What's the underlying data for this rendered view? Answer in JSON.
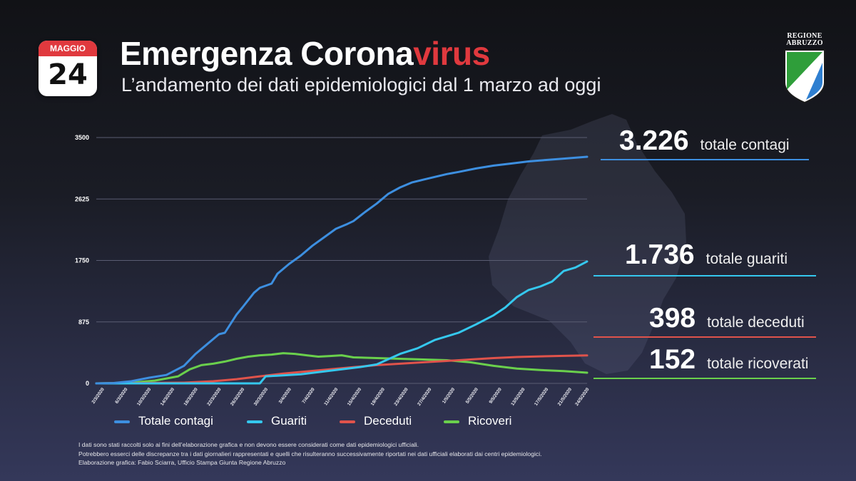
{
  "header": {
    "calendar_month": "MAGGIO",
    "calendar_day": "24",
    "title_main": "Emergenza Corona",
    "title_accent": "virus",
    "subtitle": "L’andamento dei dati epidemiologici dal 1 marzo ad oggi",
    "logo_line1": "REGIONE",
    "logo_line2": "ABRUZZO"
  },
  "colors": {
    "contagi": "#3d8fe0",
    "guariti": "#35c8ee",
    "deceduti": "#e0534b",
    "ricoveri": "#6ad04c",
    "accent": "#e0393e"
  },
  "stats": [
    {
      "value": "3.226",
      "label": "totale contagi"
    },
    {
      "value": "1.736",
      "label": "totale guariti"
    },
    {
      "value": "398",
      "label": "totale deceduti"
    },
    {
      "value": "152",
      "label": "totale ricoverati"
    }
  ],
  "footer": {
    "line1": "I dati sono stati raccolti solo ai fini dell’elaborazione grafica e non devono essere considerati come dati epidemiologici ufficiali.",
    "line2": "Potrebbero esserci delle discrepanze tra i dati giornalieri rappresentati e quelli che risulteranno successivamente riportati nei dati ufficiali elaborati dai centri epidemiologici.",
    "line3": "Elaborazione grafica: Fabio Sciarra, Ufficio Stampa Giunta Regione Abruzzo"
  },
  "chart_data": {
    "type": "line",
    "ylim": [
      0,
      3500
    ],
    "y_ticks": [
      "0",
      "875",
      "1750",
      "2625",
      "3500"
    ],
    "y_tick_values": [
      0,
      875,
      1750,
      2625,
      3500
    ],
    "grid": true,
    "legend_position": "bottom",
    "x_tick_labels": [
      "2/3/2020",
      "6/3/2020",
      "10/3/2020",
      "14/3/2020",
      "18/3/2020",
      "22/3/2020",
      "26/3/2020",
      "30/3/2020",
      "3/4/2020",
      "7/4/2020",
      "11/4/2020",
      "15/4/2020",
      "19/4/2020",
      "23/4/2020",
      "27/4/2020",
      "1/5/2020",
      "5/5/2020",
      "9/5/2020",
      "13/5/2020",
      "17/5/2020",
      "21/5/2020",
      "24/5/2020"
    ],
    "x_tick_days": [
      1,
      5,
      9,
      13,
      17,
      21,
      25,
      29,
      33,
      37,
      41,
      45,
      49,
      53,
      57,
      61,
      65,
      69,
      73,
      77,
      81,
      84
    ],
    "x_range": [
      0,
      84
    ],
    "series": [
      {
        "name": "Totale contagi",
        "key": "contagi",
        "x": [
          0,
          3,
          6,
          9,
          12,
          15,
          17,
          19,
          21,
          22,
          24,
          25,
          27,
          28,
          30,
          31,
          33,
          35,
          37,
          39,
          41,
          43,
          44,
          46,
          48,
          50,
          52,
          54,
          56,
          58,
          60,
          62,
          65,
          68,
          71,
          74,
          77,
          80,
          84
        ],
        "y": [
          0,
          5,
          30,
          80,
          120,
          250,
          420,
          560,
          700,
          720,
          980,
          1080,
          1290,
          1360,
          1420,
          1560,
          1700,
          1820,
          1960,
          2080,
          2200,
          2270,
          2310,
          2440,
          2560,
          2700,
          2790,
          2860,
          2900,
          2940,
          2980,
          3010,
          3060,
          3100,
          3130,
          3160,
          3180,
          3200,
          3226
        ]
      },
      {
        "name": "Guariti",
        "key": "guariti",
        "x": [
          0,
          28,
          29,
          31,
          35,
          40,
          45,
          48,
          52,
          55,
          58,
          62,
          65,
          68,
          70,
          72,
          74,
          76,
          78,
          80,
          82,
          84
        ],
        "y": [
          0,
          0,
          100,
          110,
          130,
          180,
          230,
          270,
          420,
          500,
          620,
          720,
          840,
          970,
          1080,
          1230,
          1330,
          1380,
          1450,
          1600,
          1650,
          1736
        ]
      },
      {
        "name": "Deceduti",
        "key": "deceduti",
        "x": [
          0,
          15,
          20,
          24,
          28,
          32,
          36,
          40,
          44,
          48,
          52,
          56,
          60,
          64,
          68,
          72,
          76,
          80,
          84
        ],
        "y": [
          0,
          10,
          30,
          60,
          100,
          140,
          170,
          200,
          230,
          260,
          280,
          300,
          320,
          340,
          360,
          375,
          385,
          392,
          398
        ]
      },
      {
        "name": "Ricoveri",
        "key": "ricoveri",
        "x": [
          0,
          6,
          10,
          14,
          16,
          18,
          20,
          22,
          24,
          26,
          28,
          30,
          32,
          34,
          36,
          38,
          40,
          42,
          44,
          48,
          52,
          56,
          60,
          64,
          68,
          72,
          76,
          80,
          84
        ],
        "y": [
          0,
          10,
          40,
          100,
          200,
          260,
          280,
          310,
          350,
          380,
          400,
          410,
          430,
          420,
          400,
          380,
          390,
          400,
          370,
          360,
          350,
          340,
          330,
          300,
          250,
          210,
          190,
          175,
          152
        ]
      }
    ]
  }
}
